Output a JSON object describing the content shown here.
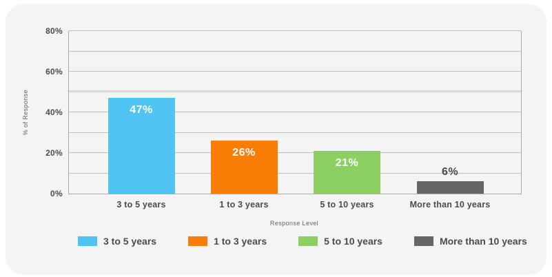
{
  "chart_data": {
    "type": "bar",
    "title": "",
    "categories": [
      "3 to 5 years",
      "1 to 3 years",
      "5 to 10 years",
      "More than 10 years"
    ],
    "values": [
      47,
      26,
      21,
      6
    ],
    "value_labels": [
      "47%",
      "26%",
      "21%",
      "6%"
    ],
    "bar_colors": [
      "#4fc3f2",
      "#f97d07",
      "#8cd064",
      "#666667"
    ],
    "xlabel": "Response Level",
    "ylabel": "% of Response",
    "ylim": [
      0,
      80
    ],
    "yticks": [
      0,
      20,
      40,
      60,
      80
    ],
    "ytick_labels": [
      "0%",
      "20%",
      "40%",
      "60%",
      "80%"
    ],
    "gridline_step": 10,
    "emphasized_gridline": 50,
    "grid": true,
    "legend_position": "bottom",
    "legend": [
      {
        "label": "3 to 5 years",
        "color": "#4fc3f2"
      },
      {
        "label": "1 to 3 years",
        "color": "#f97d07"
      },
      {
        "label": "5 to 10 years",
        "color": "#8cd064"
      },
      {
        "label": "More than 10 years",
        "color": "#666667"
      }
    ]
  },
  "colors": {
    "card_background": "#f4f4f5",
    "page_background": "#ffffff",
    "gridline": "#bfbfbf",
    "axis_border": "#a9a9a9",
    "text": "#4b4b4b"
  }
}
